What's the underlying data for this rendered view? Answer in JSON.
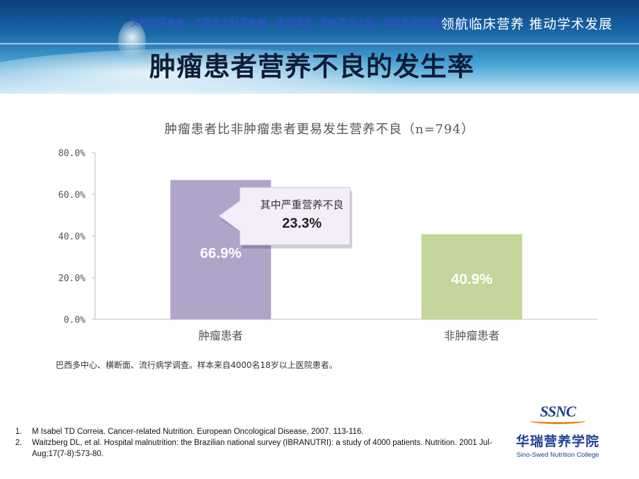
{
  "header": {
    "watermark": "文档仅供参考，不能作为科学依据，请勿模仿；如有不当之处，请联系网站或本人删除。",
    "slogan": "领航临床营养 推动学术发展"
  },
  "slide": {
    "title": "肿瘤患者营养不良的发生率",
    "note": "巴西多中心、横断面、流行病学调查。样本来自4000名18岁以上医院患者。"
  },
  "chart_data": {
    "type": "bar",
    "title": "肿瘤患者比非肿瘤患者更易发生营养不良（n=794）",
    "categories": [
      "肿瘤患者",
      "非肿瘤患者"
    ],
    "values": [
      66.9,
      40.9
    ],
    "value_labels": [
      "66.9%",
      "40.9%"
    ],
    "yticks": [
      "0.0%",
      "20.0%",
      "40.0%",
      "60.0%",
      "80.0%"
    ],
    "ylim": [
      0,
      80
    ],
    "grid": false,
    "colors": [
      "#b1a4c9",
      "#c3d69b"
    ],
    "annotation": {
      "text": "其中严重营养不良",
      "value": "23.3%"
    }
  },
  "references": [
    {
      "num": "1.",
      "text": "M Isabel TD Correia. Cancer-related Nutrition. European Oncological Disease, 2007. 113-116."
    },
    {
      "num": "2.",
      "text": "Waitzberg DL, et al. Hospital malnutrition: the Brazilian national survey (IBRANUTRI): a study of 4000 patients. Nutrition. 2001 Jul-Aug;17(7-8):573-80."
    }
  ],
  "logo": {
    "mark": "SSNC",
    "cn": "华瑞营养学院",
    "en": "Sino-Swed Nutrition College"
  }
}
